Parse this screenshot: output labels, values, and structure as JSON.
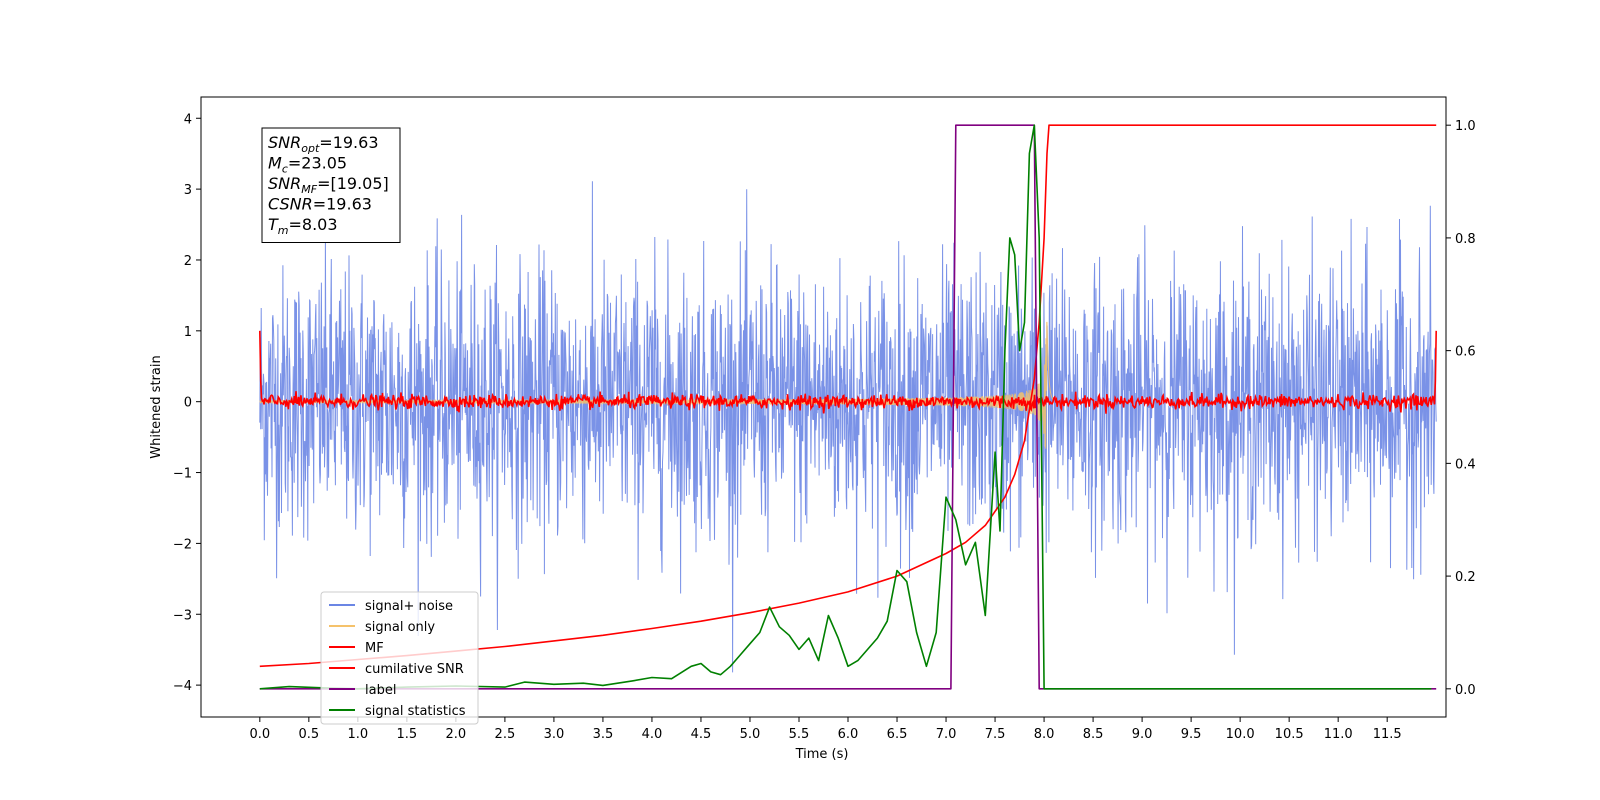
{
  "chart_data": {
    "type": "line",
    "xlabel": "Time (s)",
    "ylabel": "Whitened strain",
    "xlim": [
      -0.6,
      12.1
    ],
    "ylim_left": [
      -4.45,
      4.3
    ],
    "ylim_right": [
      -0.05,
      1.05
    ],
    "x_ticks": [
      0.0,
      0.5,
      1.0,
      1.5,
      2.0,
      2.5,
      3.0,
      3.5,
      4.0,
      4.5,
      5.0,
      5.5,
      6.0,
      6.5,
      7.0,
      7.5,
      8.0,
      8.5,
      9.0,
      9.5,
      10.0,
      10.5,
      11.0,
      11.5
    ],
    "x_tick_labels": [
      "0.0",
      "0.5",
      "1.0",
      "1.5",
      "2.0",
      "2.5",
      "3.0",
      "3.5",
      "4.0",
      "4.5",
      "5.0",
      "5.5",
      "6.0",
      "6.5",
      "7.0",
      "7.5",
      "8.0",
      "8.5",
      "9.0",
      "9.5",
      "10.0",
      "10.5",
      "11.0",
      "11.5"
    ],
    "y_left_ticks": [
      4,
      3,
      2,
      1,
      0,
      -1,
      -2,
      -3,
      -4
    ],
    "y_left_tick_labels": [
      "4",
      "3",
      "2",
      "1",
      "0",
      "−1",
      "−2",
      "−3",
      "−4"
    ],
    "y_right_ticks": [
      1.0,
      0.8,
      0.6,
      0.4,
      0.2,
      0.0
    ],
    "y_right_tick_labels": [
      "1.0",
      "0.8",
      "0.6",
      "0.4",
      "0.2",
      "0.0"
    ],
    "grid": false,
    "legend_position": "lower-left",
    "series": [
      {
        "name": "signal+ noise",
        "axis": "left",
        "color": "#6b86e4",
        "kind": "noise",
        "t_start": 0.0,
        "t_end": 12.0,
        "amplitude_rms": 1.0,
        "envelope_peak": 3.4
      },
      {
        "name": "signal only",
        "axis": "left",
        "color": "#f5c26b",
        "kind": "chirp",
        "t_start": 0.0,
        "t_merge": 8.03,
        "t_end": 8.1,
        "peak_amplitude": 2.8
      },
      {
        "name": "MF",
        "axis": "left",
        "color": "#ff0000",
        "kind": "mf",
        "t_start": 0.0,
        "t_end": 12.0,
        "edge_value": 1.0,
        "noise_level": 0.05
      },
      {
        "name": "cumilative SNR",
        "axis": "right",
        "x": [
          0.0,
          0.5,
          1.0,
          1.5,
          2.0,
          2.5,
          3.0,
          3.5,
          4.0,
          4.5,
          5.0,
          5.5,
          6.0,
          6.5,
          7.0,
          7.2,
          7.4,
          7.6,
          7.7,
          7.8,
          7.9,
          7.95,
          8.0,
          8.03,
          8.05,
          12.0
        ],
        "y": [
          0.04,
          0.045,
          0.052,
          0.059,
          0.067,
          0.075,
          0.085,
          0.095,
          0.107,
          0.12,
          0.135,
          0.152,
          0.172,
          0.2,
          0.24,
          0.26,
          0.29,
          0.34,
          0.38,
          0.44,
          0.55,
          0.65,
          0.8,
          0.95,
          1.0,
          1.0
        ],
        "color": "#ff0000"
      },
      {
        "name": "label",
        "axis": "right",
        "x": [
          0.0,
          7.05,
          7.1,
          7.9,
          7.95,
          12.0
        ],
        "y": [
          0.0,
          0.0,
          1.0,
          1.0,
          0.0,
          0.0
        ],
        "color": "#800080"
      },
      {
        "name": "signal statistics",
        "axis": "right",
        "x": [
          0.0,
          0.3,
          0.6,
          1.0,
          1.5,
          2.0,
          2.5,
          2.7,
          3.0,
          3.3,
          3.5,
          3.8,
          4.0,
          4.2,
          4.4,
          4.5,
          4.6,
          4.7,
          4.8,
          4.9,
          5.0,
          5.1,
          5.2,
          5.3,
          5.4,
          5.5,
          5.6,
          5.7,
          5.8,
          5.9,
          6.0,
          6.1,
          6.2,
          6.3,
          6.4,
          6.5,
          6.6,
          6.7,
          6.8,
          6.9,
          7.0,
          7.1,
          7.2,
          7.3,
          7.4,
          7.5,
          7.55,
          7.6,
          7.65,
          7.7,
          7.75,
          7.8,
          7.85,
          7.9,
          7.95,
          8.0,
          8.05,
          8.1,
          11.95
        ],
        "y": [
          0.0,
          0.004,
          0.002,
          0.0,
          0.003,
          0.005,
          0.003,
          0.012,
          0.008,
          0.01,
          0.006,
          0.014,
          0.02,
          0.018,
          0.04,
          0.045,
          0.03,
          0.025,
          0.04,
          0.06,
          0.08,
          0.1,
          0.145,
          0.11,
          0.095,
          0.07,
          0.09,
          0.05,
          0.13,
          0.09,
          0.04,
          0.05,
          0.07,
          0.09,
          0.12,
          0.21,
          0.19,
          0.1,
          0.04,
          0.1,
          0.34,
          0.3,
          0.22,
          0.26,
          0.13,
          0.42,
          0.28,
          0.6,
          0.8,
          0.77,
          0.6,
          0.65,
          0.95,
          1.0,
          0.8,
          0.0,
          0.0,
          0.0,
          0.0
        ],
        "color": "#008000"
      }
    ],
    "annotation": {
      "lines": [
        {
          "label_base": "SNR",
          "label_sub": "opt",
          "value": "=19.63"
        },
        {
          "label_base": "M",
          "label_sub": "c",
          "value": "=23.05"
        },
        {
          "label_base": "SNR",
          "label_sub": "MF",
          "value": "=[19.05]"
        },
        {
          "label_base": "CSNR",
          "label_sub": "",
          "value": "=19.63"
        },
        {
          "label_base": "T",
          "label_sub": "m",
          "value": "=8.03"
        }
      ]
    }
  }
}
